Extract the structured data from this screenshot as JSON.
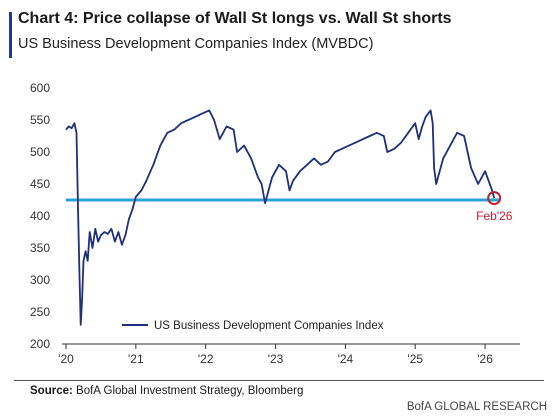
{
  "header": {
    "title": "Chart 4: Price collapse of Wall St longs vs. Wall St shorts",
    "subtitle": "US Business Development Companies Index (MVBDC)"
  },
  "footer": {
    "source_label": "Source:",
    "source_text": " BofA Global Investment Strategy, Bloomberg",
    "brand": "BofA GLOBAL RESEARCH"
  },
  "colors": {
    "series": "#1f2f7a",
    "reference_line": "#29a3dc",
    "annotation": "#c0202a",
    "accent": "#1f3a93"
  },
  "chart_data": {
    "type": "line",
    "title": "",
    "xlabel": "",
    "ylabel": "",
    "x_tick_labels": [
      "'20",
      "'21",
      "'22",
      "'23",
      "'24",
      "'25",
      "'26"
    ],
    "x_tick_years": [
      2020,
      2021,
      2022,
      2023,
      2024,
      2025,
      2026
    ],
    "xlim": [
      2020.0,
      2026.5
    ],
    "y_tick_labels": [
      "200",
      "250",
      "300",
      "350",
      "400",
      "450",
      "500",
      "550",
      "600"
    ],
    "ylim": [
      200,
      600
    ],
    "grid": false,
    "legend_position": "bottom-left",
    "reference_line": {
      "y": 425,
      "x_from": 2020.0,
      "x_to": 2026.2
    },
    "annotation": {
      "label": "Feb'26",
      "x": 2026.13,
      "y": 428
    },
    "series": [
      {
        "name": "US Business Development Companies Index",
        "x": [
          2020.0,
          2020.04,
          2020.08,
          2020.12,
          2020.15,
          2020.17,
          2020.19,
          2020.21,
          2020.23,
          2020.25,
          2020.28,
          2020.31,
          2020.34,
          2020.38,
          2020.42,
          2020.46,
          2020.5,
          2020.55,
          2020.6,
          2020.65,
          2020.7,
          2020.75,
          2020.8,
          2020.85,
          2020.9,
          2020.95,
          2021.0,
          2021.08,
          2021.15,
          2021.25,
          2021.35,
          2021.45,
          2021.55,
          2021.65,
          2021.75,
          2021.85,
          2021.95,
          2022.05,
          2022.12,
          2022.2,
          2022.3,
          2022.4,
          2022.45,
          2022.55,
          2022.65,
          2022.75,
          2022.8,
          2022.85,
          2022.95,
          2023.05,
          2023.15,
          2023.2,
          2023.25,
          2023.35,
          2023.45,
          2023.55,
          2023.65,
          2023.75,
          2023.85,
          2023.95,
          2024.05,
          2024.15,
          2024.25,
          2024.35,
          2024.45,
          2024.55,
          2024.6,
          2024.7,
          2024.8,
          2024.9,
          2025.0,
          2025.05,
          2025.1,
          2025.15,
          2025.22,
          2025.25,
          2025.27,
          2025.3,
          2025.4,
          2025.5,
          2025.6,
          2025.7,
          2025.75,
          2025.8,
          2025.9,
          2026.0,
          2026.05,
          2026.1,
          2026.13
        ],
        "y": [
          535,
          540,
          537,
          545,
          530,
          420,
          320,
          230,
          270,
          330,
          345,
          330,
          375,
          350,
          380,
          360,
          370,
          375,
          372,
          380,
          360,
          375,
          355,
          370,
          395,
          410,
          430,
          440,
          455,
          480,
          510,
          530,
          535,
          545,
          550,
          555,
          560,
          565,
          550,
          520,
          540,
          535,
          500,
          510,
          490,
          460,
          450,
          420,
          460,
          480,
          470,
          440,
          455,
          470,
          480,
          490,
          480,
          485,
          500,
          505,
          510,
          515,
          520,
          525,
          530,
          525,
          500,
          505,
          515,
          530,
          545,
          520,
          540,
          555,
          565,
          545,
          475,
          450,
          490,
          510,
          530,
          525,
          500,
          475,
          450,
          470,
          455,
          440,
          428
        ]
      }
    ]
  }
}
